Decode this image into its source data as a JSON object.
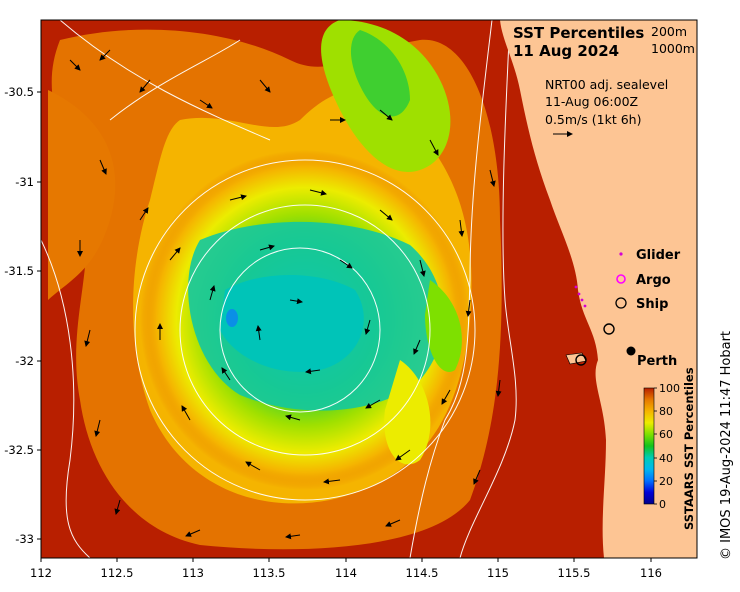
{
  "title": {
    "main": "SST Percentiles",
    "date": "11 Aug 2024",
    "contours": [
      "200m",
      "1000m"
    ]
  },
  "currents": {
    "source": "NRT00 adj. sealevel",
    "time": "11-Aug 06:00Z",
    "scale": "0.5m/s (1kt 6h)"
  },
  "legend": [
    {
      "label": "Glider",
      "symbol": "dot",
      "color": "#d400d4"
    },
    {
      "label": "Argo",
      "symbol": "ring",
      "color": "#ff00ff"
    },
    {
      "label": "Ship",
      "symbol": "ring",
      "color": "#000000"
    }
  ],
  "city": {
    "label": "Perth"
  },
  "colorbar": {
    "title": "SSTAARS SST Percentiles",
    "ticks": [
      "100",
      "80",
      "60",
      "40",
      "20",
      "0"
    ],
    "colors": [
      "#00008b",
      "#0000d8",
      "#0070ff",
      "#00b7ee",
      "#00ccb4",
      "#13c21c",
      "#7ee000",
      "#ecec00",
      "#f5b400",
      "#e67800",
      "#b81f00"
    ]
  },
  "axes": {
    "x_ticks": [
      "112",
      "112.5",
      "113",
      "113.5",
      "114",
      "114.5",
      "115",
      "115.5",
      "116"
    ],
    "y_ticks": [
      "-30.5",
      "-31",
      "-31.5",
      "-32",
      "-32.5",
      "-33"
    ]
  },
  "credit": "© IMOS 19-Aug-2024 11:47 Hobart",
  "colors": {
    "land": "#fdc594",
    "warm": "#b81f00"
  }
}
